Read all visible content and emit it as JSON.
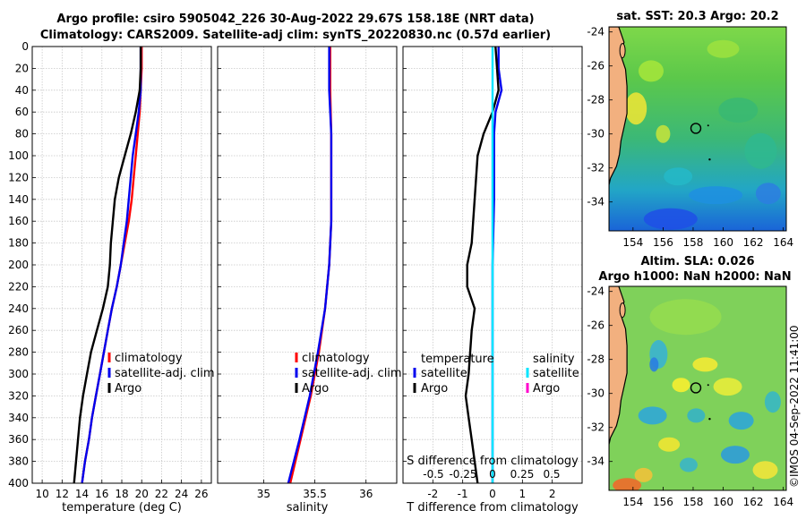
{
  "title_line1": "Argo profile: csiro 5905042_226 30-Aug-2022 29.67S 158.18E (NRT data)",
  "title_line2": "Climatology: CARS2009. Satellite-adj clim: synTS_20220830.nc (0.57d earlier)",
  "copyright": "©IMOS 04-Sep-2022 11:41:00",
  "colors": {
    "climatology": "#ff0000",
    "satellite": "#0000ee",
    "argo": "#000000",
    "sal_satellite": "#00e5ff",
    "sal_argo": "#ff00cc"
  },
  "chart_data": [
    {
      "id": "temperature",
      "type": "line",
      "xlabel": "temperature (deg C)",
      "ylabel": "",
      "xlim": [
        9,
        27
      ],
      "ylim": [
        400,
        0
      ],
      "xticks": [
        10,
        12,
        14,
        16,
        18,
        20,
        22,
        24,
        26
      ],
      "yticks": [
        0,
        20,
        40,
        60,
        80,
        100,
        120,
        140,
        160,
        180,
        200,
        220,
        240,
        260,
        280,
        300,
        320,
        340,
        360,
        380,
        400
      ],
      "legend": [
        "climatology",
        "satellite-adj. clim",
        "Argo"
      ],
      "series": [
        {
          "name": "climatology",
          "color": "climatology",
          "points": [
            [
              20.0,
              0
            ],
            [
              20.0,
              20
            ],
            [
              19.9,
              40
            ],
            [
              19.8,
              60
            ],
            [
              19.6,
              80
            ],
            [
              19.4,
              100
            ],
            [
              19.2,
              120
            ],
            [
              19.0,
              140
            ],
            [
              18.7,
              160
            ],
            [
              18.3,
              180
            ],
            [
              17.9,
              200
            ],
            [
              17.5,
              220
            ],
            [
              17.0,
              240
            ],
            [
              16.6,
              260
            ],
            [
              16.2,
              280
            ],
            [
              15.8,
              300
            ],
            [
              15.4,
              320
            ],
            [
              15.0,
              340
            ],
            [
              14.7,
              360
            ],
            [
              14.3,
              380
            ],
            [
              14.0,
              400
            ]
          ]
        },
        {
          "name": "satellite-adj. clim",
          "color": "satellite",
          "points": [
            [
              19.9,
              0
            ],
            [
              19.9,
              20
            ],
            [
              19.9,
              40
            ],
            [
              19.7,
              60
            ],
            [
              19.4,
              80
            ],
            [
              19.1,
              100
            ],
            [
              18.9,
              120
            ],
            [
              18.7,
              140
            ],
            [
              18.5,
              160
            ],
            [
              18.2,
              180
            ],
            [
              17.9,
              200
            ],
            [
              17.5,
              220
            ],
            [
              17.0,
              240
            ],
            [
              16.6,
              260
            ],
            [
              16.2,
              280
            ],
            [
              15.8,
              300
            ],
            [
              15.4,
              320
            ],
            [
              15.0,
              340
            ],
            [
              14.7,
              360
            ],
            [
              14.3,
              380
            ],
            [
              14.0,
              400
            ]
          ]
        },
        {
          "name": "Argo",
          "color": "argo",
          "points": [
            [
              19.9,
              0
            ],
            [
              19.9,
              20
            ],
            [
              19.8,
              40
            ],
            [
              19.4,
              60
            ],
            [
              18.9,
              80
            ],
            [
              18.3,
              100
            ],
            [
              17.7,
              120
            ],
            [
              17.3,
              140
            ],
            [
              17.1,
              160
            ],
            [
              16.9,
              180
            ],
            [
              16.8,
              200
            ],
            [
              16.6,
              220
            ],
            [
              16.1,
              240
            ],
            [
              15.5,
              260
            ],
            [
              14.9,
              280
            ],
            [
              14.5,
              300
            ],
            [
              14.1,
              320
            ],
            [
              13.8,
              340
            ],
            [
              13.6,
              360
            ],
            [
              13.4,
              380
            ],
            [
              13.2,
              400
            ]
          ]
        }
      ]
    },
    {
      "id": "salinity",
      "type": "line",
      "xlabel": "salinity",
      "xlim": [
        34.55,
        36.3
      ],
      "ylim": [
        400,
        0
      ],
      "xticks": [
        35,
        35.5,
        36
      ],
      "legend": [
        "climatology",
        "satellite-adj. clim",
        "Argo"
      ],
      "series": [
        {
          "name": "climatology",
          "color": "climatology",
          "points": [
            [
              35.65,
              0
            ],
            [
              35.65,
              40
            ],
            [
              35.66,
              80
            ],
            [
              35.66,
              120
            ],
            [
              35.66,
              160
            ],
            [
              35.64,
              200
            ],
            [
              35.6,
              240
            ],
            [
              35.54,
              280
            ],
            [
              35.46,
              320
            ],
            [
              35.36,
              360
            ],
            [
              35.26,
              400
            ]
          ]
        },
        {
          "name": "satellite-adj. clim",
          "color": "satellite",
          "points": [
            [
              35.64,
              0
            ],
            [
              35.64,
              40
            ],
            [
              35.66,
              80
            ],
            [
              35.66,
              120
            ],
            [
              35.66,
              160
            ],
            [
              35.64,
              200
            ],
            [
              35.6,
              240
            ],
            [
              35.53,
              280
            ],
            [
              35.45,
              320
            ],
            [
              35.35,
              360
            ],
            [
              35.24,
              400
            ]
          ]
        }
      ]
    },
    {
      "id": "difference",
      "type": "line",
      "xlabel": "T difference from climatology",
      "top_xlabel": "S difference from climatology",
      "xlim": [
        -3,
        3
      ],
      "ylim": [
        400,
        0
      ],
      "xticks": [
        -2,
        -1,
        0,
        1,
        2
      ],
      "sticks": [
        -0.5,
        -0.25,
        0,
        0.25,
        0.5
      ],
      "legend_temperature_title": "temperature",
      "legend_salinity_title": "salinity",
      "legend_temperature": [
        "satellite",
        "Argo"
      ],
      "legend_salinity": [
        "satellite",
        "Argo"
      ],
      "series": [
        {
          "name": "T satellite",
          "color": "satellite",
          "points": [
            [
              0.2,
              0
            ],
            [
              0.2,
              20
            ],
            [
              0.3,
              40
            ],
            [
              0.1,
              60
            ],
            [
              0.05,
              80
            ],
            [
              0.05,
              100
            ],
            [
              0.05,
              140
            ],
            [
              0.0,
              200
            ],
            [
              0.0,
              300
            ],
            [
              0.0,
              400
            ]
          ]
        },
        {
          "name": "T Argo",
          "color": "argo",
          "points": [
            [
              0.1,
              0
            ],
            [
              0.15,
              20
            ],
            [
              0.2,
              40
            ],
            [
              0.0,
              60
            ],
            [
              -0.3,
              80
            ],
            [
              -0.5,
              100
            ],
            [
              -0.6,
              140
            ],
            [
              -0.7,
              180
            ],
            [
              -0.85,
              200
            ],
            [
              -0.85,
              220
            ],
            [
              -0.6,
              240
            ],
            [
              -0.7,
              260
            ],
            [
              -0.75,
              280
            ],
            [
              -0.8,
              300
            ],
            [
              -0.9,
              320
            ],
            [
              -0.8,
              340
            ],
            [
              -0.7,
              360
            ],
            [
              -0.6,
              380
            ],
            [
              -0.5,
              400
            ]
          ]
        },
        {
          "name": "S satellite",
          "color": "sal_satellite",
          "points": [
            [
              0.0,
              0
            ],
            [
              0.0,
              100
            ],
            [
              0.0,
              200
            ],
            [
              0.0,
              300
            ],
            [
              0.0,
              400
            ]
          ]
        }
      ]
    }
  ],
  "maps": [
    {
      "id": "sst",
      "title1": "sat. SST: 20.3 Argo: 20.2",
      "title2": "",
      "xticks": [
        154,
        156,
        158,
        160,
        162,
        164
      ],
      "yticks": [
        -24,
        -26,
        -28,
        -30,
        -32,
        -34
      ],
      "xlim": [
        152.4,
        164.2
      ],
      "ylim": [
        -35.7,
        -23.7
      ],
      "argo_position": {
        "lon": 158.18,
        "lat": -29.67
      }
    },
    {
      "id": "sla",
      "title1": "Altim. SLA: 0.026",
      "title2": "Argo h1000: NaN h2000: NaN",
      "xticks": [
        154,
        156,
        158,
        160,
        162,
        164
      ],
      "yticks": [
        -24,
        -26,
        -28,
        -30,
        -32,
        -34
      ],
      "xlim": [
        152.4,
        164.2
      ],
      "ylim": [
        -35.7,
        -23.7
      ],
      "argo_position": {
        "lon": 158.18,
        "lat": -29.67
      }
    }
  ]
}
